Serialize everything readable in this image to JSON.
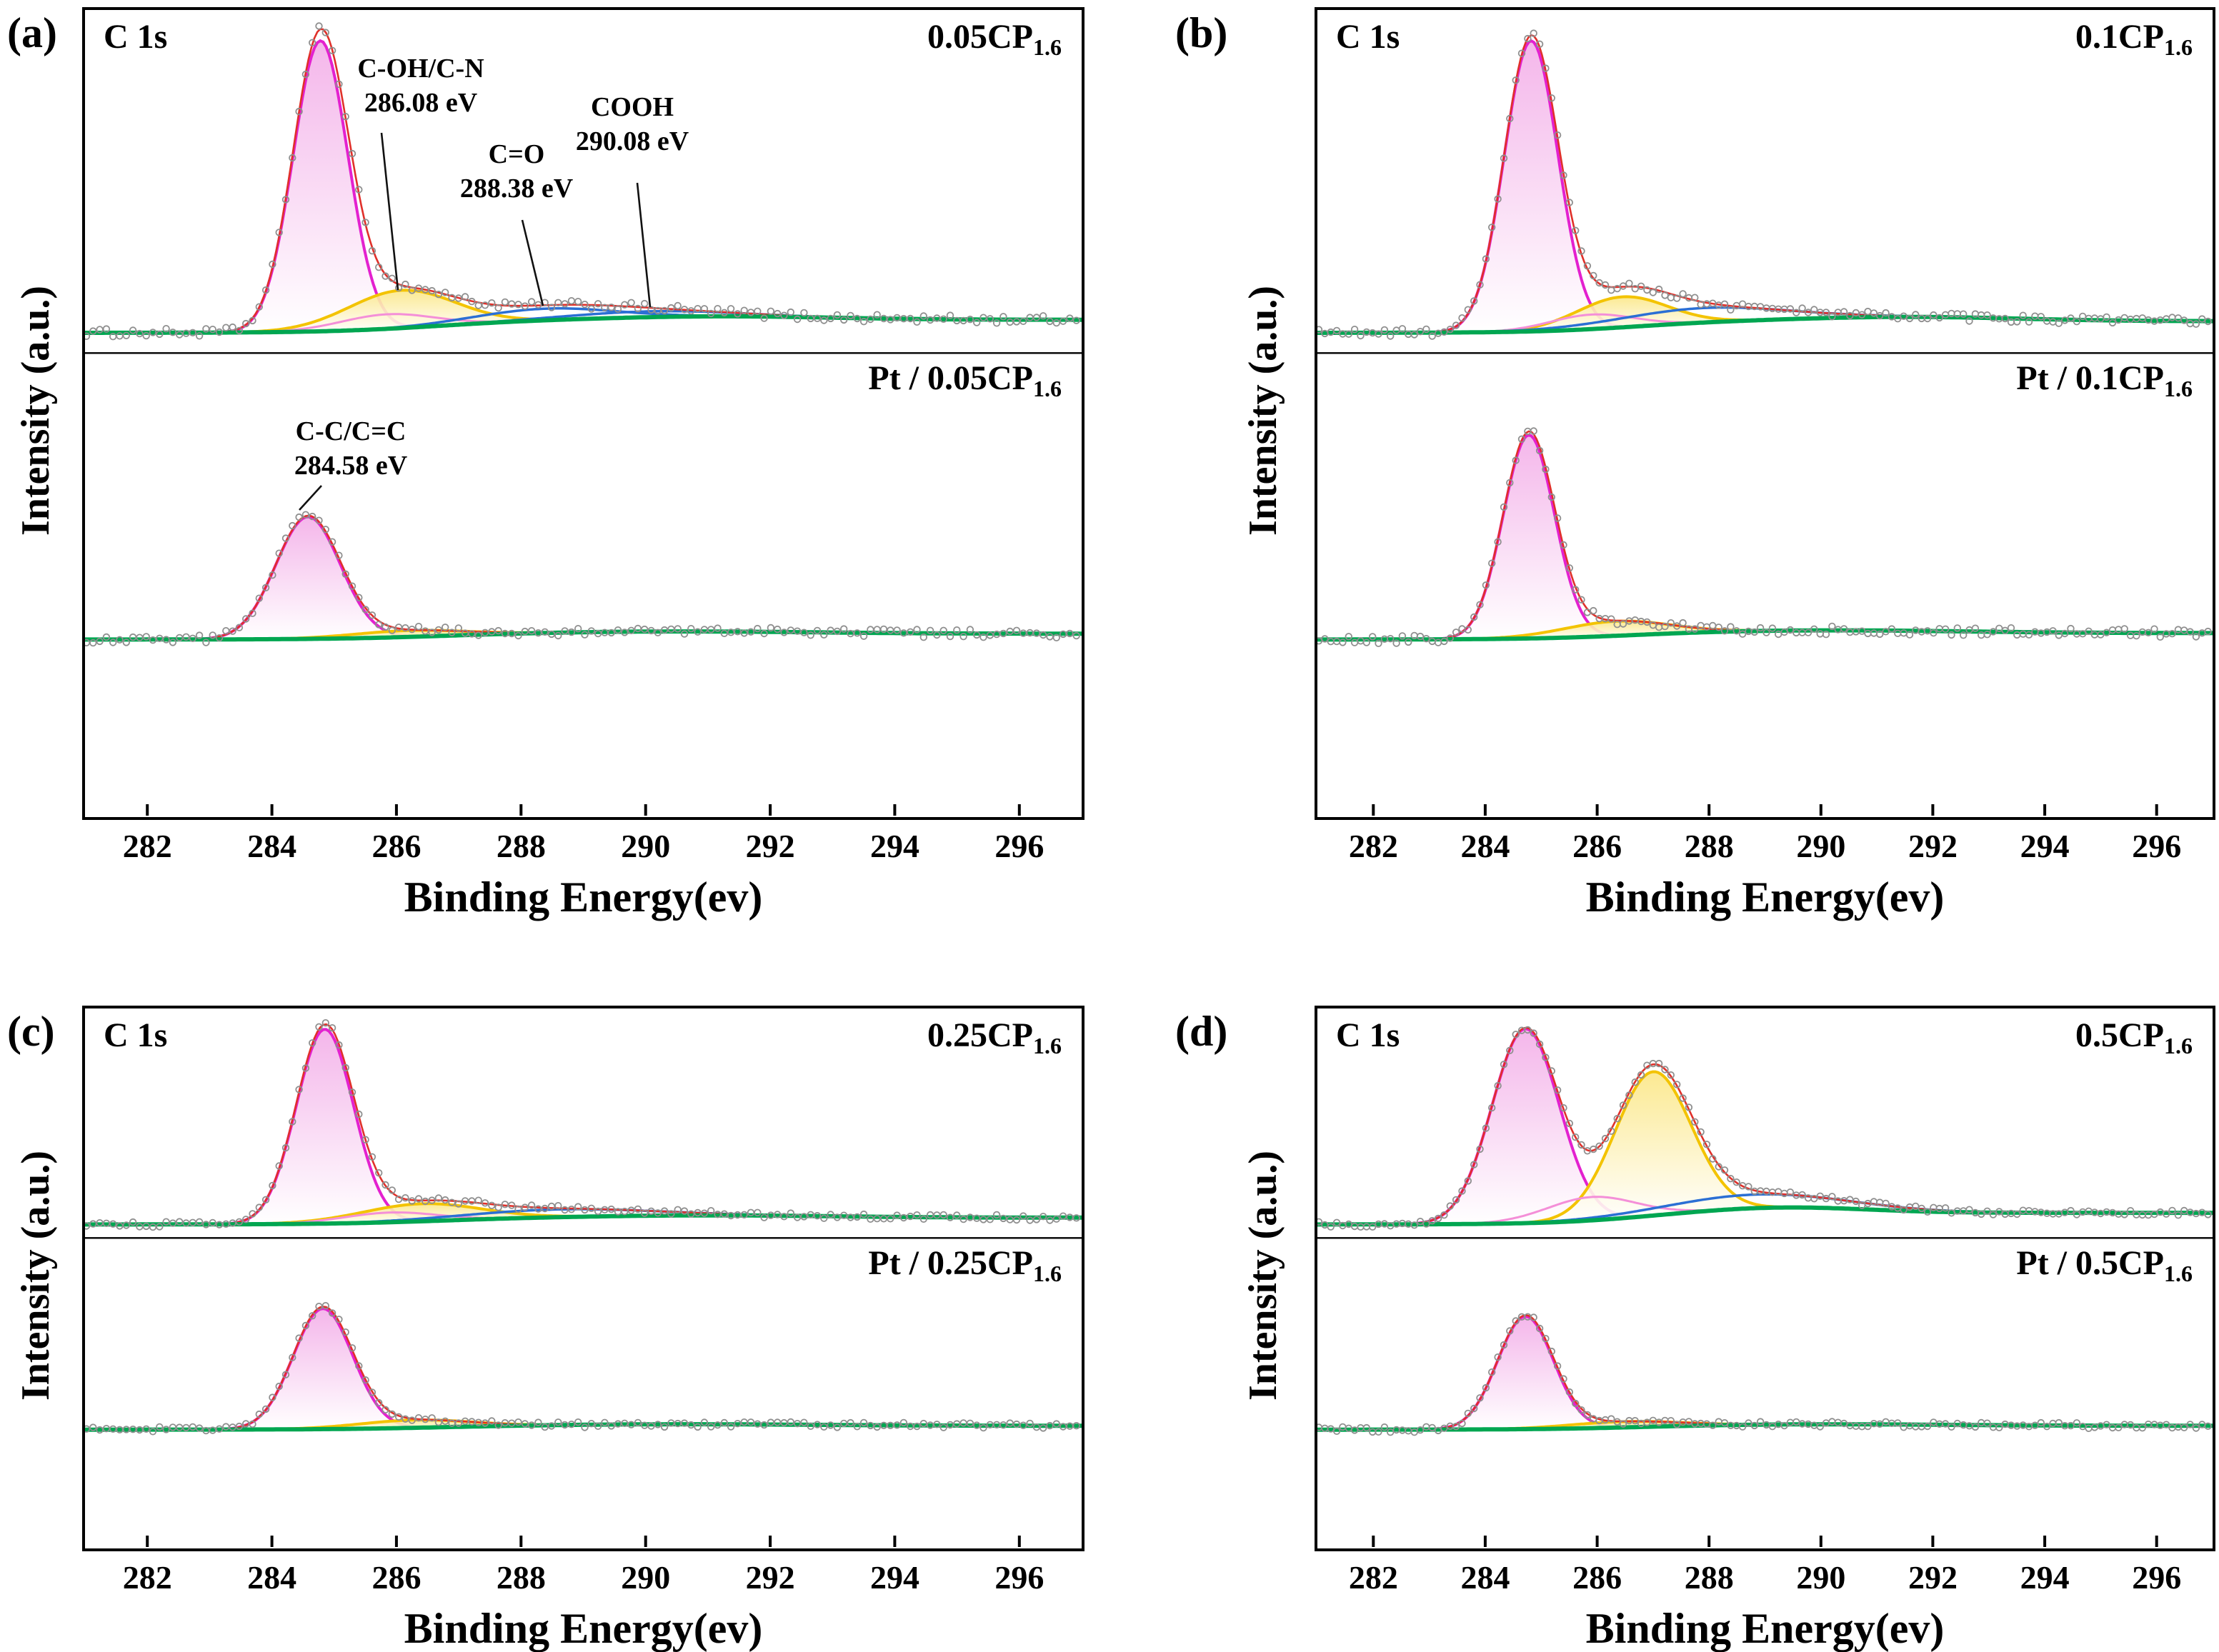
{
  "chart_data": {
    "type": "line",
    "description": "XPS C 1s core-level spectra with fitted components (four panels, each with a bare sample spectrum on top and a Pt-loaded sample spectrum below)",
    "xlabel": "Binding Energy(ev)",
    "ylabel": "Intensity (a.u.)",
    "x_range": [
      281,
      297
    ],
    "x_ticks": [
      282,
      284,
      286,
      288,
      290,
      292,
      294,
      296
    ],
    "x_unit": "eV",
    "colors": {
      "main_peak": "#e321cf",
      "c_oh_c_n": "#f3c300",
      "c_o": "#2b6fd4",
      "shoulder": "#f48fd8",
      "envelope": "#e0302a",
      "background": "#00a651",
      "data_points": "#8f8f8f"
    },
    "panels": [
      {
        "id": "a",
        "corner_label": "(a)",
        "core_level": "C 1s",
        "spectra": [
          {
            "position": "top",
            "label": {
              "text": "0.05CP",
              "sub": "1.6"
            },
            "background": {
              "rise": 0.045,
              "bump_amp": 0.012,
              "bump_center": 291.2,
              "bump_sigma": 1.8
            },
            "components": [
              {
                "name": "C-C/C=C",
                "center_eV": 284.78,
                "sigma_eV": 0.44,
                "rel_amplitude": 1.0,
                "color": "#e321cf"
              },
              {
                "name": "C-OH/C-N",
                "center_eV": 286.08,
                "sigma_eV": 0.85,
                "rel_amplitude": 0.13,
                "color": "#f3c300"
              },
              {
                "name": "shoulder",
                "center_eV": 285.85,
                "sigma_eV": 0.75,
                "rel_amplitude": 0.05,
                "color": "#f48fd8",
                "overlay": true
              },
              {
                "name": "C=O",
                "center_eV": 288.38,
                "sigma_eV": 1.1,
                "rel_amplitude": 0.04,
                "color": "#2b6fd4"
              },
              {
                "name": "COOH",
                "center_eV": 290.08,
                "sigma_eV": 1.3,
                "rel_amplitude": 0.02,
                "color": "#2b6fd4"
              }
            ]
          },
          {
            "position": "bottom",
            "label": {
              "text": "Pt / 0.05CP",
              "sub": "1.6"
            },
            "background": {
              "rise": 0.02,
              "bump_amp": 0.008,
              "bump_center": 290.5,
              "bump_sigma": 2.2
            },
            "components": [
              {
                "name": "C-C/C=C",
                "center_eV": 284.58,
                "sigma_eV": 0.52,
                "rel_amplitude": 0.42,
                "color": "#e321cf"
              },
              {
                "name": "C-OH/C-N",
                "center_eV": 286.2,
                "sigma_eV": 0.9,
                "rel_amplitude": 0.022,
                "color": "#f3c300"
              }
            ]
          }
        ],
        "annotations": [
          {
            "peak": "C-OH/C-N",
            "lines": [
              "C-OH/C-N",
              "286.08 eV"
            ]
          },
          {
            "peak": "C=O",
            "lines": [
              "C=O",
              "288.38 eV"
            ]
          },
          {
            "peak": "COOH",
            "lines": [
              "COOH",
              "290.08 eV"
            ]
          },
          {
            "peak": "C-C/C=C",
            "lines": [
              "C-C/C=C",
              "284.58 eV"
            ]
          }
        ]
      },
      {
        "id": "b",
        "corner_label": "(b)",
        "core_level": "C 1s",
        "spectra": [
          {
            "position": "top",
            "label": {
              "text": "0.1CP",
              "sub": "1.6"
            },
            "background": {
              "rise": 0.04,
              "bump_amp": 0.015,
              "bump_center": 291.5,
              "bump_sigma": 2.0
            },
            "components": [
              {
                "name": "C-C/C=C",
                "center_eV": 284.82,
                "sigma_eV": 0.48,
                "rel_amplitude": 1.0,
                "color": "#e321cf"
              },
              {
                "name": "C-OH/C-N",
                "center_eV": 286.45,
                "sigma_eV": 0.8,
                "rel_amplitude": 0.105,
                "color": "#f3c300"
              },
              {
                "name": "shoulder",
                "center_eV": 285.9,
                "sigma_eV": 0.75,
                "rel_amplitude": 0.05,
                "color": "#f48fd8",
                "overlay": true
              },
              {
                "name": "C=O",
                "center_eV": 287.9,
                "sigma_eV": 1.5,
                "rel_amplitude": 0.05,
                "color": "#2b6fd4"
              }
            ]
          },
          {
            "position": "bottom",
            "label": {
              "text": "Pt / 0.1CP",
              "sub": "1.6"
            },
            "background": {
              "rise": 0.022,
              "bump_amp": 0.01,
              "bump_center": 290.0,
              "bump_sigma": 2.5
            },
            "components": [
              {
                "name": "C-C/C=C",
                "center_eV": 284.78,
                "sigma_eV": 0.46,
                "rel_amplitude": 0.7,
                "color": "#e321cf"
              },
              {
                "name": "C-OH/C-N",
                "center_eV": 286.35,
                "sigma_eV": 0.95,
                "rel_amplitude": 0.05,
                "color": "#f3c300"
              }
            ]
          }
        ],
        "annotations": []
      },
      {
        "id": "c",
        "corner_label": "(c)",
        "core_level": "C 1s",
        "spectra": [
          {
            "position": "top",
            "label": {
              "text": "0.25CP",
              "sub": "1.6"
            },
            "background": {
              "rise": 0.035,
              "bump_amp": 0.012,
              "bump_center": 291.0,
              "bump_sigma": 2.0
            },
            "components": [
              {
                "name": "C-C/C=C",
                "center_eV": 284.85,
                "sigma_eV": 0.46,
                "rel_amplitude": 1.0,
                "color": "#e321cf"
              },
              {
                "name": "C-OH/C-N",
                "center_eV": 286.4,
                "sigma_eV": 0.95,
                "rel_amplitude": 0.09,
                "color": "#f3c300"
              },
              {
                "name": "shoulder",
                "center_eV": 285.9,
                "sigma_eV": 0.75,
                "rel_amplitude": 0.05,
                "color": "#f48fd8",
                "overlay": true
              },
              {
                "name": "C=O",
                "center_eV": 288.6,
                "sigma_eV": 1.5,
                "rel_amplitude": 0.04,
                "color": "#2b6fd4"
              }
            ]
          },
          {
            "position": "bottom",
            "label": {
              "text": "Pt / 0.25CP",
              "sub": "1.6"
            },
            "background": {
              "rise": 0.02,
              "bump_amp": 0.008,
              "bump_center": 290.5,
              "bump_sigma": 2.2
            },
            "components": [
              {
                "name": "C-C/C=C",
                "center_eV": 284.82,
                "sigma_eV": 0.48,
                "rel_amplitude": 0.62,
                "color": "#e321cf"
              },
              {
                "name": "C-OH/C-N",
                "center_eV": 286.3,
                "sigma_eV": 0.9,
                "rel_amplitude": 0.04,
                "color": "#f3c300"
              }
            ]
          }
        ],
        "annotations": []
      },
      {
        "id": "d",
        "corner_label": "(d)",
        "core_level": "C 1s",
        "spectra": [
          {
            "position": "top",
            "label": {
              "text": "0.5CP",
              "sub": "1.6"
            },
            "background": {
              "rise": 0.06,
              "bump_amp": 0.03,
              "bump_center": 289.3,
              "bump_sigma": 1.5
            },
            "components": [
              {
                "name": "C-C/C=C",
                "center_eV": 284.72,
                "sigma_eV": 0.6,
                "rel_amplitude": 1.0,
                "color": "#e321cf"
              },
              {
                "name": "C-OH/C-N",
                "center_eV": 287.0,
                "sigma_eV": 0.68,
                "rel_amplitude": 0.74,
                "color": "#f3c300"
              },
              {
                "name": "shoulder",
                "center_eV": 285.9,
                "sigma_eV": 0.8,
                "rel_amplitude": 0.12,
                "color": "#f48fd8",
                "overlay": true
              },
              {
                "name": "C=O",
                "center_eV": 288.8,
                "sigma_eV": 1.6,
                "rel_amplitude": 0.07,
                "color": "#2b6fd4"
              }
            ]
          },
          {
            "position": "bottom",
            "label": {
              "text": "Pt / 0.5CP",
              "sub": "1.6"
            },
            "background": {
              "rise": 0.02,
              "bump_amp": 0.008,
              "bump_center": 290.0,
              "bump_sigma": 2.2
            },
            "components": [
              {
                "name": "C-C/C=C",
                "center_eV": 284.72,
                "sigma_eV": 0.5,
                "rel_amplitude": 0.58,
                "color": "#e321cf"
              },
              {
                "name": "C-OH/C-N",
                "center_eV": 286.5,
                "sigma_eV": 1.0,
                "rel_amplitude": 0.03,
                "color": "#f3c300"
              }
            ]
          }
        ],
        "annotations": []
      }
    ]
  }
}
